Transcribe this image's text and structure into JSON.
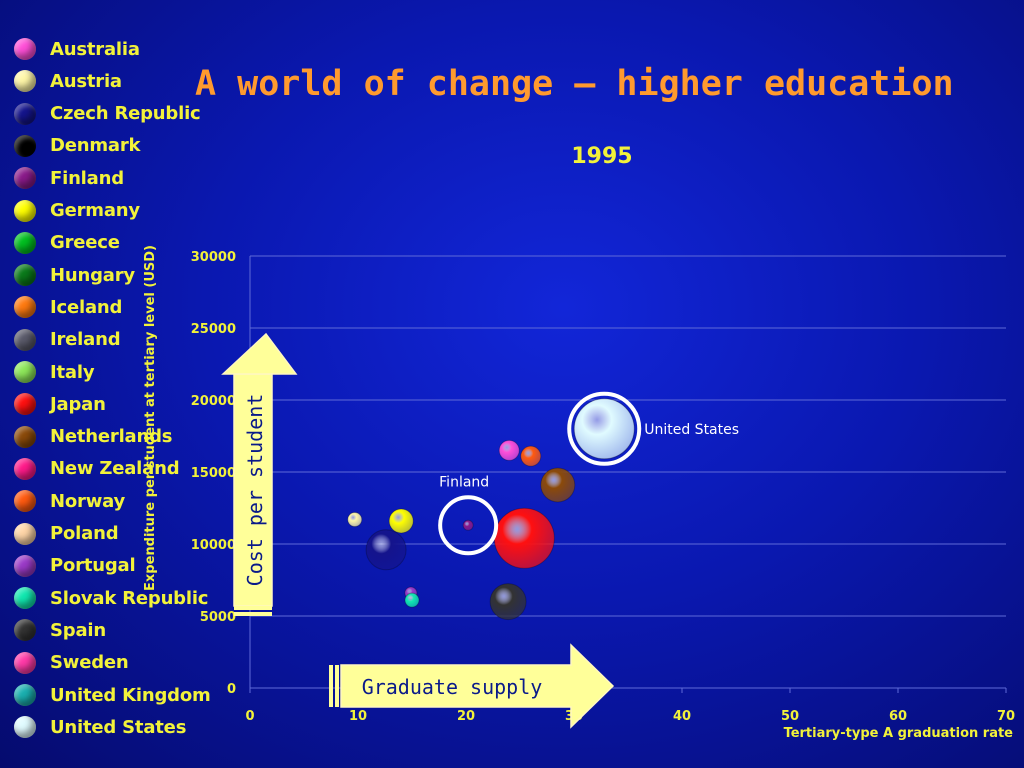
{
  "title": "A world of change – higher education",
  "subtitle": "1995",
  "chart_data": {
    "type": "scatter",
    "xlabel": "Tertiary-type A graduation rate",
    "ylabel": "Expenditure per student at tertiary level (USD)",
    "xlim": [
      0,
      70
    ],
    "ylim": [
      0,
      30000
    ],
    "x_ticks": [
      "0",
      "10",
      "20",
      "30",
      "40",
      "50",
      "60",
      "70"
    ],
    "y_ticks": [
      "0",
      "5000",
      "10000",
      "15000",
      "20000",
      "25000",
      "30000"
    ],
    "grid": "horizontal",
    "legend_position": "left",
    "points": [
      {
        "country": "Australia",
        "x": 24,
        "y": 16500,
        "size": 10,
        "color": "#ff4fd8"
      },
      {
        "country": "Austria",
        "x": 9.7,
        "y": 11700,
        "size": 7,
        "color": "#fff7a8"
      },
      {
        "country": "Czech Republic",
        "x": 12.6,
        "y": 9600,
        "size": 20,
        "color": "#14148c"
      },
      {
        "country": "Finland",
        "x": 20.2,
        "y": 11300,
        "size": 5,
        "color": "#8a1a8a"
      },
      {
        "country": "Germany",
        "x": 14,
        "y": 11600,
        "size": 12,
        "color": "#ffff00"
      },
      {
        "country": "Japan",
        "x": 25.4,
        "y": 10400,
        "size": 30,
        "color": "#ff1010"
      },
      {
        "country": "Netherlands",
        "x": 28.5,
        "y": 14100,
        "size": 17,
        "color": "#8b4a0a"
      },
      {
        "country": "Norway",
        "x": 26,
        "y": 16100,
        "size": 10,
        "color": "#ff5a10"
      },
      {
        "country": "Portugal",
        "x": 14.9,
        "y": 6600,
        "size": 6,
        "color": "#9b3ac8"
      },
      {
        "country": "Slovak Republic",
        "x": 15,
        "y": 6100,
        "size": 7,
        "color": "#10e8b0"
      },
      {
        "country": "Spain",
        "x": 23.9,
        "y": 6000,
        "size": 18,
        "color": "#333333"
      },
      {
        "country": "United States",
        "x": 32.8,
        "y": 18000,
        "size": 30,
        "color": "#e0fbff"
      }
    ],
    "highlights": [
      {
        "label": "Finland",
        "x": 20.2,
        "y": 11300
      },
      {
        "label": "United States",
        "x": 32.8,
        "y": 18000
      }
    ]
  },
  "legend": [
    {
      "label": "Australia",
      "color": "#ff4fd8"
    },
    {
      "label": "Austria",
      "color": "#fff7a8"
    },
    {
      "label": "Czech Republic",
      "color": "#14148c"
    },
    {
      "label": "Denmark",
      "color": "#000000"
    },
    {
      "label": "Finland",
      "color": "#8a1a8a"
    },
    {
      "label": "Germany",
      "color": "#ffff00"
    },
    {
      "label": "Greece",
      "color": "#00c020"
    },
    {
      "label": "Hungary",
      "color": "#0a7a1a"
    },
    {
      "label": "Iceland",
      "color": "#ff7a10"
    },
    {
      "label": "Ireland",
      "color": "#5a5a6a"
    },
    {
      "label": "Italy",
      "color": "#8ee85a"
    },
    {
      "label": "Japan",
      "color": "#ff1010"
    },
    {
      "label": "Netherlands",
      "color": "#8b4a0a"
    },
    {
      "label": "New Zealand",
      "color": "#ff1a8a"
    },
    {
      "label": "Norway",
      "color": "#ff5a10"
    },
    {
      "label": "Poland",
      "color": "#ffd6a8"
    },
    {
      "label": "Portugal",
      "color": "#9b3ac8"
    },
    {
      "label": "Slovak Republic",
      "color": "#10e8b0"
    },
    {
      "label": "Spain",
      "color": "#333333"
    },
    {
      "label": "Sweden",
      "color": "#ff3aa8"
    },
    {
      "label": "United Kingdom",
      "color": "#1ab0b0"
    },
    {
      "label": "United States",
      "color": "#e0fbff"
    }
  ],
  "arrows": {
    "vertical_label": "Cost per student",
    "horizontal_label": "Graduate supply",
    "fill_color": "#ffff99"
  },
  "colors": {
    "title": "#ff9a2e",
    "text": "#f2f23a",
    "gridline": "#5f6ad8"
  }
}
